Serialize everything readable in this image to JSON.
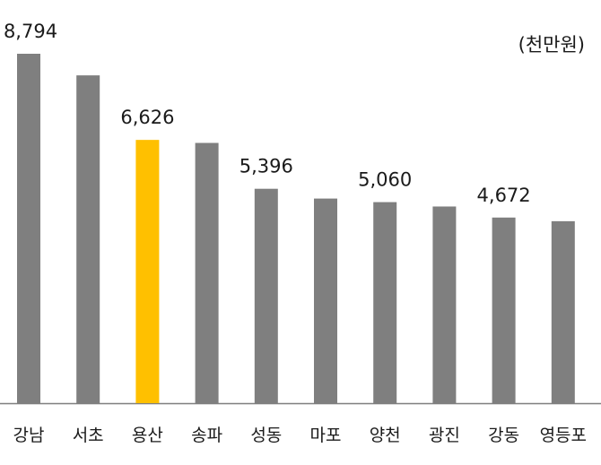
{
  "chart_data": {
    "type": "bar",
    "unit": "(천만원)",
    "categories": [
      "강남",
      "서초",
      "용산",
      "송파",
      "성동",
      "마포",
      "양천",
      "광진",
      "강동",
      "영등포"
    ],
    "values": [
      8794,
      8250,
      6626,
      6550,
      5396,
      5150,
      5060,
      4950,
      4672,
      4580
    ],
    "data_labels": [
      "8,794",
      "",
      "6,626",
      "",
      "5,396",
      "",
      "5,060",
      "",
      "4,672",
      ""
    ],
    "highlight_index": 2,
    "colors": {
      "bar": "#7f7f7f",
      "highlight": "#ffc000",
      "axis": "#7f7f7f"
    },
    "ylim": [
      0,
      8794
    ],
    "grid": false,
    "legend": "none"
  }
}
